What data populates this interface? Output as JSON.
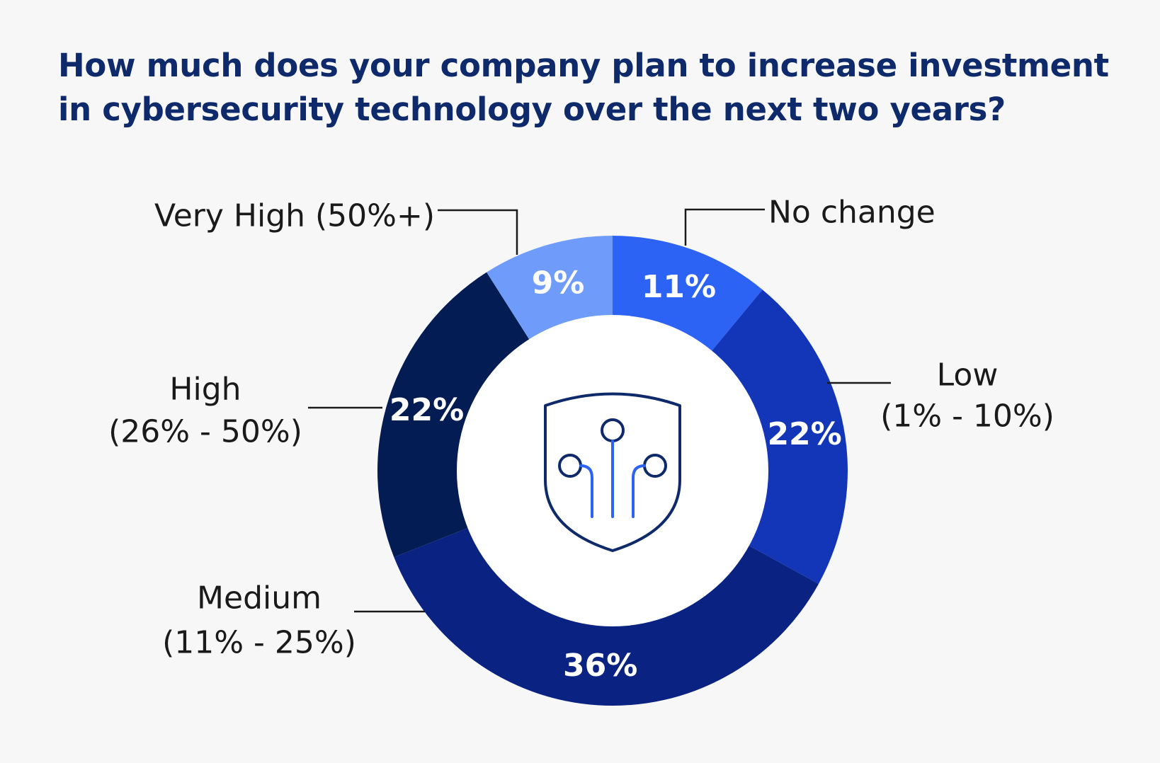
{
  "chart_data": {
    "type": "pie",
    "variant": "donut",
    "title_lines": [
      "How much does your company plan to increase investment",
      "in cybersecurity technology over the next two years?"
    ],
    "slices": [
      {
        "label_lines": [
          "No change"
        ],
        "value": 11,
        "value_label": "11%",
        "color": "#2d63f5"
      },
      {
        "label_lines": [
          "Low",
          "(1% - 10%)"
        ],
        "value": 22,
        "value_label": "22%",
        "color": "#1336b8"
      },
      {
        "label_lines": [
          "Medium",
          "(11% - 25%)"
        ],
        "value": 36,
        "value_label": "36%",
        "color": "#0a2383"
      },
      {
        "label_lines": [
          "High",
          "(26% - 50%)"
        ],
        "value": 22,
        "value_label": "22%",
        "color": "#041c54"
      },
      {
        "label_lines": [
          "Very High (50%+)"
        ],
        "value": 9,
        "value_label": "9%",
        "color": "#6f9cfa"
      }
    ],
    "center_icon": "shield-circuit-icon",
    "colors": {
      "title": "#0e2a6b",
      "icon": "#0e2a6b",
      "icon_accent": "#2d63f5",
      "background": "#f7f7f8"
    }
  }
}
